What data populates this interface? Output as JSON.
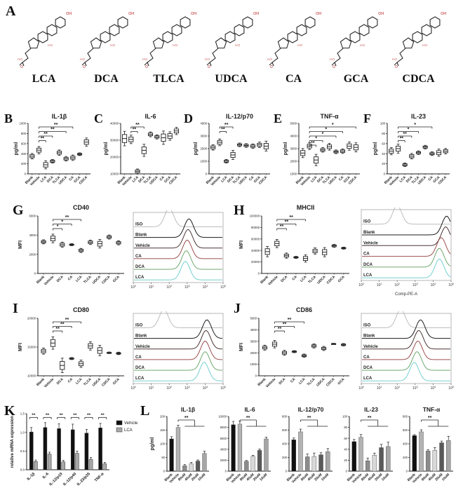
{
  "panels": {
    "A": "A",
    "B": "B",
    "C": "C",
    "D": "D",
    "E": "E",
    "F": "F",
    "G": "G",
    "H": "H",
    "I": "I",
    "J": "J",
    "K": "K",
    "L": "L"
  },
  "panelA": {
    "names": [
      "LCA",
      "DCA",
      "TLCA",
      "UDCA",
      "CA",
      "GCA",
      "CDCA"
    ],
    "atom_labels": {
      "oh": "OH",
      "ho": "HO",
      "o": "O"
    }
  },
  "chart_data": [
    {
      "id": "B",
      "type": "box",
      "title": "IL-1β",
      "ylabel": "pg/ml",
      "categories": [
        "Blank",
        "Vehicle",
        "LCA",
        "DCA",
        "TLCA",
        "UDCA",
        "CA",
        "GCA",
        "CDCA"
      ],
      "values": [
        350,
        470,
        180,
        250,
        420,
        300,
        320,
        390,
        630
      ],
      "spread": [
        30,
        40,
        45,
        20,
        30,
        25,
        30,
        15,
        45
      ],
      "ylim": [
        0,
        1000
      ],
      "yticks": [
        "0",
        "200",
        "400",
        "600",
        "800",
        "1000"
      ],
      "sig": [
        {
          "from": 1,
          "to": 2,
          "label": "**"
        },
        {
          "from": 1,
          "to": 3,
          "label": "**"
        },
        {
          "from": 1,
          "to": 5,
          "label": "**"
        },
        {
          "from": 1,
          "to": 6,
          "label": "**"
        }
      ]
    },
    {
      "id": "C",
      "type": "box",
      "title": "IL-6",
      "ylabel": "pg/ml",
      "categories": [
        "Blank",
        "Vehicle",
        "LCA",
        "DCA",
        "TLCA",
        "UDCA",
        "CA",
        "GCA",
        "CDCA"
      ],
      "values": [
        31000,
        30500,
        11500,
        24000,
        33500,
        32000,
        31500,
        32500,
        35500
      ],
      "spread": [
        2400,
        1400,
        800,
        2000,
        800,
        700,
        2200,
        1400,
        1200
      ],
      "ylim": [
        10000,
        40000
      ],
      "yticks": [
        "10000",
        "20000",
        "30000",
        "40000"
      ],
      "sig": [
        {
          "from": 1,
          "to": 2,
          "label": "**"
        },
        {
          "from": 1,
          "to": 3,
          "label": "**"
        }
      ]
    },
    {
      "id": "D",
      "type": "box",
      "title": "IL-12/p70",
      "ylabel": "pg/ml",
      "categories": [
        "Blank",
        "Vehicle",
        "LCA",
        "DCA",
        "TLCA",
        "UDCA",
        "CA",
        "GCA",
        "CDCA"
      ],
      "values": [
        2100,
        2500,
        1000,
        1500,
        2300,
        2250,
        2200,
        2300,
        2200
      ],
      "spread": [
        120,
        150,
        80,
        200,
        80,
        80,
        100,
        120,
        220
      ],
      "ylim": [
        0,
        4000
      ],
      "yticks": [
        "0",
        "1000",
        "2000",
        "3000",
        "4000"
      ],
      "sig": [
        {
          "from": 1,
          "to": 2,
          "label": "**"
        },
        {
          "from": 1,
          "to": 3,
          "label": "**"
        }
      ]
    },
    {
      "id": "E",
      "type": "box",
      "title": "TNF-α",
      "ylabel": "pg/ml",
      "categories": [
        "Blank",
        "Vehicle",
        "LCA",
        "DCA",
        "TLCA",
        "UDCA",
        "CA",
        "GCA",
        "CDCA"
      ],
      "values": [
        2650,
        3200,
        2100,
        2900,
        3150,
        2750,
        2800,
        3200,
        3100
      ],
      "spread": [
        200,
        150,
        250,
        100,
        150,
        80,
        100,
        180,
        200
      ],
      "ylim": [
        1000,
        5000
      ],
      "yticks": [
        "1000",
        "2000",
        "3000",
        "4000",
        "5000"
      ],
      "sig": [
        {
          "from": 1,
          "to": 2,
          "label": "**"
        },
        {
          "from": 1,
          "to": 3,
          "label": "*"
        },
        {
          "from": 1,
          "to": 5,
          "label": "*"
        },
        {
          "from": 1,
          "to": 6,
          "label": "*"
        },
        {
          "from": 1,
          "to": 8,
          "label": "*"
        }
      ]
    },
    {
      "id": "F",
      "type": "box",
      "title": "IL-23",
      "ylabel": "pg/ml",
      "categories": [
        "Blank",
        "Vehicle",
        "LCA",
        "DCA",
        "TLCA",
        "UDCA",
        "CA",
        "GCA",
        "CDCA"
      ],
      "values": [
        45,
        50,
        18,
        35,
        42,
        53,
        40,
        42,
        45
      ],
      "spread": [
        4,
        5,
        2,
        3,
        2,
        2,
        2,
        4,
        3
      ],
      "ylim": [
        0,
        100
      ],
      "yticks": [
        "0",
        "20",
        "40",
        "60",
        "80",
        "100"
      ],
      "sig": [
        {
          "from": 1,
          "to": 2,
          "label": "**"
        },
        {
          "from": 1,
          "to": 3,
          "label": "**"
        },
        {
          "from": 1,
          "to": 4,
          "label": "*"
        },
        {
          "from": 1,
          "to": 6,
          "label": "*"
        }
      ]
    },
    {
      "id": "Gbox",
      "type": "box",
      "title": "CD40",
      "ylabel": "MFI",
      "categories": [
        "Blank",
        "Vehicle",
        "DCA",
        "CA",
        "LCA",
        "TLCA",
        "UDCA",
        "CDCA",
        "GCA"
      ],
      "values": [
        3300,
        3650,
        3000,
        3000,
        2400,
        3250,
        3100,
        3800,
        3200
      ],
      "spread": [
        120,
        250,
        150,
        60,
        120,
        130,
        250,
        120,
        120
      ],
      "ylim": [
        0,
        6000
      ],
      "yticks": [
        "0",
        "2000",
        "4000",
        "6000"
      ],
      "sig": [
        {
          "from": 1,
          "to": 2,
          "label": "*"
        },
        {
          "from": 1,
          "to": 3,
          "label": "*"
        },
        {
          "from": 1,
          "to": 4,
          "label": "**"
        }
      ]
    },
    {
      "id": "Gflow",
      "type": "flow",
      "xlabel": "",
      "rows": [
        {
          "label": "ISO",
          "color": "#bdbdbd",
          "peak": 2.0
        },
        {
          "label": "Blank",
          "color": "#1a1a1a",
          "peak": 3.1
        },
        {
          "label": "Vehicle",
          "color": "#4a3434",
          "peak": 3.05
        },
        {
          "label": "CA",
          "color": "#9c4f4f",
          "peak": 3.0
        },
        {
          "label": "DCA",
          "color": "#6fa86f",
          "peak": 2.95
        },
        {
          "label": "LCA",
          "color": "#74cfcf",
          "peak": 2.9
        }
      ],
      "xexp": [
        "0",
        "1",
        "2",
        "3",
        "4",
        "5"
      ]
    },
    {
      "id": "Hbox",
      "type": "box",
      "title": "MHCII",
      "ylabel": "MFI",
      "categories": [
        "Blank",
        "Vehicle",
        "DCA",
        "CA",
        "LCA",
        "TLCA",
        "UDCA",
        "CDCA",
        "GCA"
      ],
      "values": [
        38000,
        52000,
        31000,
        28000,
        26000,
        39000,
        37000,
        48000,
        44000
      ],
      "spread": [
        5000,
        4000,
        2500,
        1000,
        3500,
        3000,
        4500,
        1500,
        1000
      ],
      "ylim": [
        0,
        100000
      ],
      "yticks": [
        "0",
        "20000",
        "40000",
        "60000",
        "80000",
        "100000"
      ],
      "sig": [
        {
          "from": 1,
          "to": 2,
          "label": "**"
        },
        {
          "from": 1,
          "to": 3,
          "label": "**"
        },
        {
          "from": 1,
          "to": 4,
          "label": "**"
        }
      ]
    },
    {
      "id": "Hflow",
      "type": "flow",
      "xlabel": "Comp-PE-A",
      "rows": [
        {
          "label": "ISO",
          "color": "#bdbdbd",
          "peak": 2.0
        },
        {
          "label": "Blank",
          "color": "#1a1a1a",
          "peak": 4.75
        },
        {
          "label": "Vehicle",
          "color": "#4a3434",
          "peak": 4.7
        },
        {
          "label": "CA",
          "color": "#9c4f4f",
          "peak": 4.45
        },
        {
          "label": "DCA",
          "color": "#6fa86f",
          "peak": 4.35
        },
        {
          "label": "LCA",
          "color": "#74cfcf",
          "peak": 4.35
        }
      ],
      "xexp": [
        "0",
        "1",
        "2",
        "3",
        "4",
        "5"
      ]
    },
    {
      "id": "Ibox",
      "type": "box",
      "title": "CD80",
      "ylabel": "MFI",
      "categories": [
        "Blank",
        "Vehicle",
        "DCA",
        "CA",
        "LCA",
        "TLCA",
        "UDCA",
        "CDCA",
        "GCA"
      ],
      "values": [
        14300,
        15700,
        11800,
        13000,
        12100,
        15200,
        14400,
        14000,
        13900
      ],
      "spread": [
        300,
        600,
        700,
        100,
        350,
        400,
        500,
        80,
        120
      ],
      "ylim": [
        10000,
        20000
      ],
      "yticks": [
        "10000",
        "15000",
        "20000"
      ],
      "sig": [
        {
          "from": 1,
          "to": 2,
          "label": "**"
        },
        {
          "from": 1,
          "to": 3,
          "label": "**"
        },
        {
          "from": 1,
          "to": 4,
          "label": "**"
        }
      ]
    },
    {
      "id": "Iflow",
      "type": "flow",
      "xlabel": "",
      "rows": [
        {
          "label": "ISO",
          "color": "#bdbdbd",
          "peak": 1.7
        },
        {
          "label": "Blank",
          "color": "#1a1a1a",
          "peak": 4.1
        },
        {
          "label": "Vehicle",
          "color": "#4a3434",
          "peak": 4.05
        },
        {
          "label": "CA",
          "color": "#9c4f4f",
          "peak": 4.0
        },
        {
          "label": "DCA",
          "color": "#6fa86f",
          "peak": 4.0
        },
        {
          "label": "LCA",
          "color": "#74cfcf",
          "peak": 3.95
        }
      ],
      "xexp": [
        "0",
        "1",
        "2",
        "3",
        "4",
        "5"
      ]
    },
    {
      "id": "Jbox",
      "type": "box",
      "title": "CD86",
      "ylabel": "MFI",
      "categories": [
        "Blank",
        "Vehicle",
        "DCA",
        "CA",
        "LCA",
        "TLCA",
        "UDCA",
        "CDCA",
        "GCA"
      ],
      "values": [
        2450,
        2750,
        2000,
        2100,
        1750,
        2600,
        2380,
        2780,
        2700
      ],
      "spread": [
        120,
        180,
        120,
        50,
        80,
        100,
        100,
        30,
        60
      ],
      "ylim": [
        0,
        5000
      ],
      "yticks": [
        "0",
        "1000",
        "2000",
        "3000",
        "4000",
        "5000"
      ],
      "sig": [
        {
          "from": 1,
          "to": 2,
          "label": "**"
        },
        {
          "from": 1,
          "to": 3,
          "label": "**"
        },
        {
          "from": 1,
          "to": 4,
          "label": "**"
        }
      ]
    },
    {
      "id": "Jflow",
      "type": "flow",
      "xlabel": "",
      "rows": [
        {
          "label": "ISO",
          "color": "#bdbdbd",
          "peak": 2.2
        },
        {
          "label": "Blank",
          "color": "#1a1a1a",
          "peak": 3.3
        },
        {
          "label": "Vehicle",
          "color": "#4a3434",
          "peak": 3.2
        },
        {
          "label": "CA",
          "color": "#9c4f4f",
          "peak": 3.15
        },
        {
          "label": "DCA",
          "color": "#6fa86f",
          "peak": 3.1
        },
        {
          "label": "LCA",
          "color": "#74cfcf",
          "peak": 2.95
        }
      ],
      "xexp": [
        "0",
        "1",
        "2",
        "3",
        "4",
        "5"
      ]
    },
    {
      "id": "K",
      "type": "grouped-bar",
      "ylabel": "relative mRNA expression",
      "categories": [
        "IL-1β",
        "IL-6",
        "IL-12/p19",
        "IL-12/p40",
        "IL-23/p35",
        "TNF-α"
      ],
      "series": [
        {
          "name": "Vehicle",
          "color": "#111111",
          "values": [
            1.01,
            1.13,
            1.1,
            1.07,
            0.98,
            1.12
          ],
          "errors": [
            0.12,
            0.13,
            0.13,
            0.15,
            0.1,
            0.12
          ]
        },
        {
          "name": "LCA",
          "color": "#a8a8a8",
          "values": [
            0.22,
            0.42,
            0.21,
            0.44,
            0.28,
            0.16
          ],
          "errors": [
            0.04,
            0.05,
            0.04,
            0.06,
            0.05,
            0.04
          ]
        }
      ],
      "ylim": [
        0,
        1.5
      ],
      "yticks": [
        "0.0",
        "0.5",
        "1.0",
        "1.5"
      ],
      "sig_label": "**"
    },
    {
      "id": "L1",
      "type": "bar",
      "title": "IL-1β",
      "ylabel": "pg/ml",
      "categories": [
        "Blank",
        "Vehicle",
        "80uM",
        "40uM",
        "20uM",
        "10uM"
      ],
      "values": [
        118,
        160,
        20,
        27,
        37,
        65
      ],
      "errors": [
        8,
        8,
        4,
        5,
        4,
        8
      ],
      "colors": [
        "#111111",
        "#b3b3b3",
        "#8c8c8c",
        "#d9d9d9",
        "#595959",
        "#a6a6a6"
      ],
      "ylim": [
        0,
        200
      ],
      "yticks": [
        "0",
        "50",
        "100",
        "150",
        "200"
      ],
      "sig": {
        "from": 1,
        "span": [
          2,
          5
        ],
        "label": "**"
      }
    },
    {
      "id": "L2",
      "type": "bar",
      "title": "IL-6",
      "ylabel": "",
      "categories": [
        "Blank",
        "Vehicle",
        "80uM",
        "40uM",
        "20uM",
        "10uM"
      ],
      "values": [
        8500,
        8600,
        1800,
        2700,
        3800,
        5900
      ],
      "errors": [
        600,
        500,
        150,
        200,
        250,
        300
      ],
      "colors": [
        "#111111",
        "#b3b3b3",
        "#8c8c8c",
        "#d9d9d9",
        "#595959",
        "#a6a6a6"
      ],
      "ylim": [
        0,
        10000
      ],
      "yticks": [
        "0",
        "2000",
        "4000",
        "6000",
        "8000",
        "10000"
      ],
      "sig": {
        "from": 1,
        "span": [
          2,
          5
        ],
        "label": "**"
      }
    },
    {
      "id": "L3",
      "type": "bar",
      "title": "IL-12/p70",
      "ylabel": "",
      "categories": [
        "Blank",
        "Vehicle",
        "80uM",
        "40uM",
        "20uM",
        "10uM"
      ],
      "values": [
        460,
        575,
        210,
        215,
        240,
        285
      ],
      "errors": [
        25,
        40,
        40,
        50,
        30,
        45
      ],
      "colors": [
        "#111111",
        "#b3b3b3",
        "#8c8c8c",
        "#d9d9d9",
        "#595959",
        "#a6a6a6"
      ],
      "ylim": [
        0,
        800
      ],
      "yticks": [
        "0",
        "200",
        "400",
        "600",
        "800"
      ],
      "sig": {
        "from": 1,
        "span": [
          2,
          5
        ],
        "label": "**"
      }
    },
    {
      "id": "L4",
      "type": "bar",
      "title": "IL-23",
      "ylabel": "",
      "categories": [
        "Blank",
        "Vehicle",
        "80uM",
        "40uM",
        "20uM",
        "10uM"
      ],
      "values": [
        54,
        62,
        19,
        29,
        43,
        45
      ],
      "errors": [
        4,
        5,
        5,
        4,
        6,
        8
      ],
      "colors": [
        "#111111",
        "#b3b3b3",
        "#8c8c8c",
        "#d9d9d9",
        "#595959",
        "#a6a6a6"
      ],
      "ylim": [
        0,
        100
      ],
      "yticks": [
        "0",
        "20",
        "40",
        "60",
        "80",
        "100"
      ],
      "sig": {
        "from": 1,
        "span": [
          2,
          5
        ],
        "label": "**"
      }
    },
    {
      "id": "L5",
      "type": "bar",
      "title": "TNF-α",
      "ylabel": "",
      "categories": [
        "Blank",
        "Vehicle",
        "80uM",
        "40uM",
        "20uM",
        "10uM"
      ],
      "values": [
        520,
        575,
        295,
        305,
        415,
        450
      ],
      "errors": [
        15,
        30,
        20,
        40,
        25,
        60
      ],
      "colors": [
        "#111111",
        "#b3b3b3",
        "#8c8c8c",
        "#d9d9d9",
        "#595959",
        "#a6a6a6"
      ],
      "ylim": [
        0,
        800
      ],
      "yticks": [
        "0",
        "200",
        "400",
        "600",
        "800"
      ],
      "sig": {
        "from": 1,
        "span": [
          2,
          5
        ],
        "label": "**"
      }
    }
  ]
}
